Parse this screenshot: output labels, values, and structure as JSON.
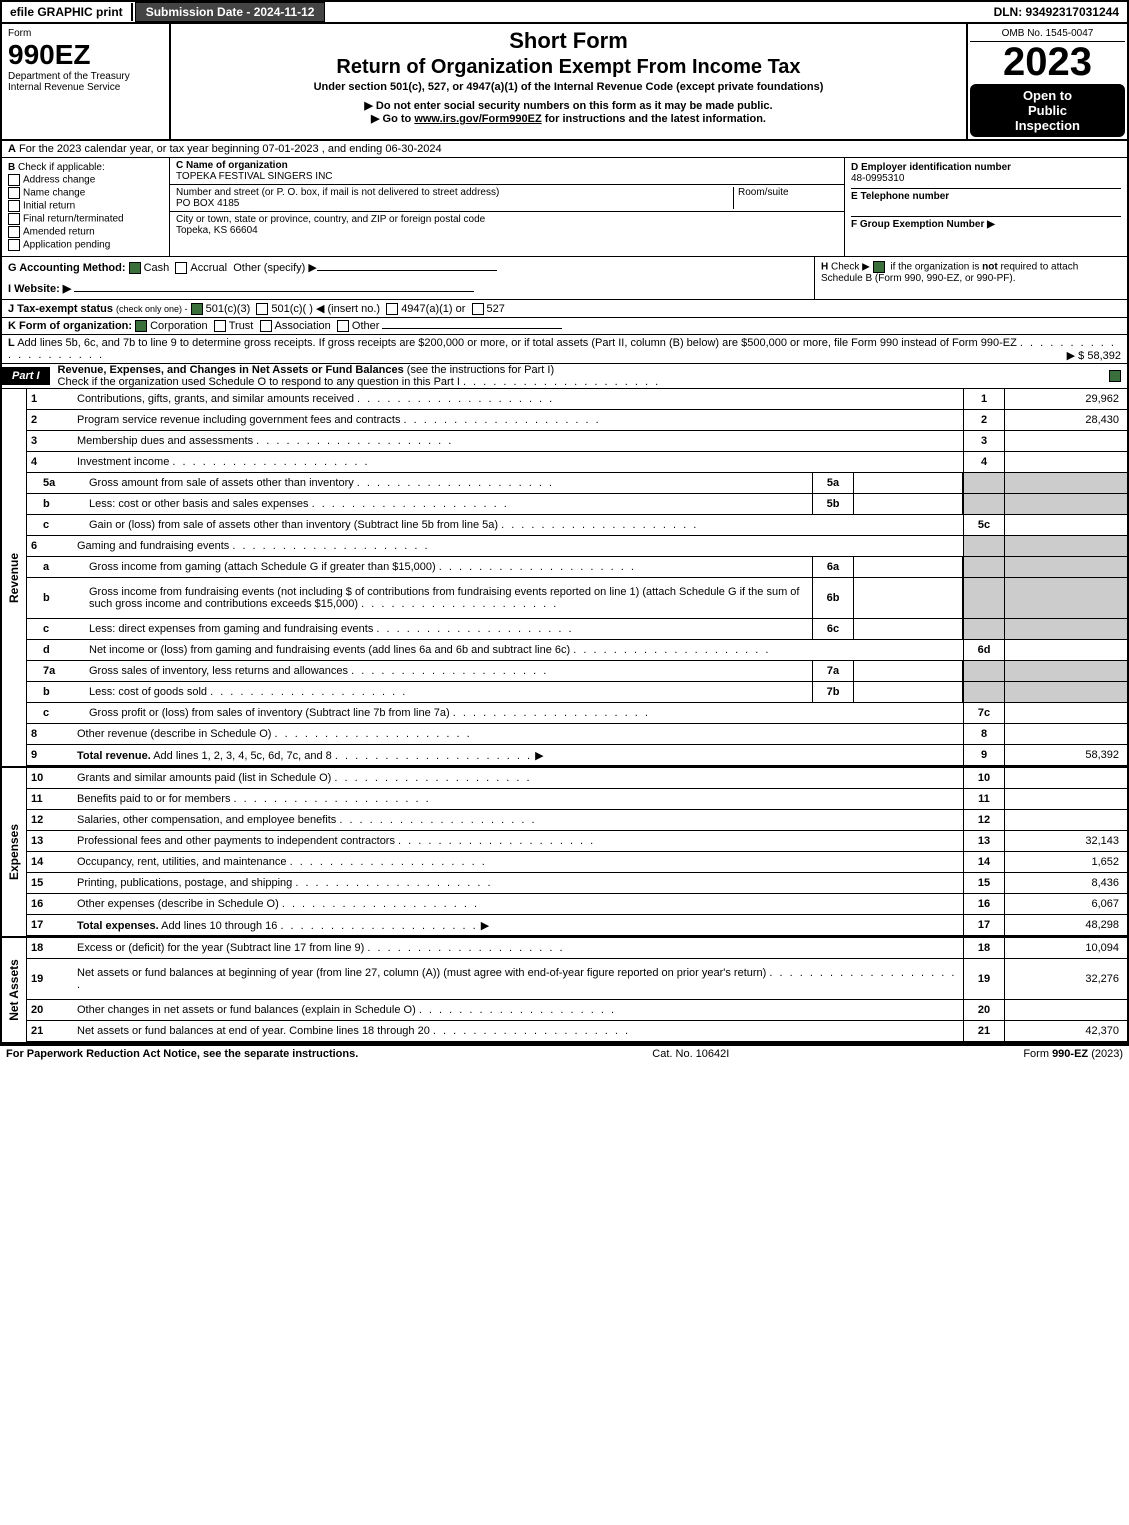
{
  "topbar": {
    "efile": "efile GRAPHIC print",
    "submission": "Submission Date - 2024-11-12",
    "dln": "DLN: 93492317031244"
  },
  "header": {
    "form_word": "Form",
    "form_num": "990EZ",
    "dept1": "Department of the Treasury",
    "dept2": "Internal Revenue Service",
    "title1": "Short Form",
    "title2": "Return of Organization Exempt From Income Tax",
    "subtitle": "Under section 501(c), 527, or 4947(a)(1) of the Internal Revenue Code (except private foundations)",
    "note1": "▶ Do not enter social security numbers on this form as it may be made public.",
    "note2": "▶ Go to www.irs.gov/Form990EZ for instructions and the latest information.",
    "omb": "OMB No. 1545-0047",
    "year": "2023",
    "open1": "Open to",
    "open2": "Public",
    "open3": "Inspection"
  },
  "lineA": {
    "label": "A",
    "text": "For the 2023 calendar year, or tax year beginning 07-01-2023 , and ending 06-30-2024"
  },
  "sectionB": {
    "label": "B",
    "heading": "Check if applicable:",
    "opts": [
      "Address change",
      "Name change",
      "Initial return",
      "Final return/terminated",
      "Amended return",
      "Application pending"
    ]
  },
  "sectionC": {
    "name_label": "C Name of organization",
    "name": "TOPEKA FESTIVAL SINGERS INC",
    "addr_label": "Number and street (or P. O. box, if mail is not delivered to street address)",
    "room_label": "Room/suite",
    "addr": "PO BOX 4185",
    "city_label": "City or town, state or province, country, and ZIP or foreign postal code",
    "city": "Topeka, KS  66604"
  },
  "sectionDEF": {
    "d_label": "D Employer identification number",
    "d_val": "48-0995310",
    "e_label": "E Telephone number",
    "f_label": "F Group Exemption Number  ▶"
  },
  "lineG": {
    "label": "G Accounting Method:",
    "cash": "Cash",
    "accrual": "Accrual",
    "other": "Other (specify) ▶"
  },
  "lineH": {
    "label": "H",
    "text1": "Check ▶",
    "text2": "if the organization is not required to attach Schedule B (Form 990, 990-EZ, or 990-PF)."
  },
  "lineI": {
    "label": "I Website: ▶"
  },
  "lineJ": {
    "label": "J Tax-exempt status",
    "sub": "(check only one) -",
    "opts": "501(c)(3)   501(c)(  ) ◀ (insert no.)   4947(a)(1) or   527"
  },
  "lineK": {
    "label": "K Form of organization:",
    "opts": [
      "Corporation",
      "Trust",
      "Association",
      "Other"
    ]
  },
  "lineL": {
    "label": "L",
    "text": "Add lines 5b, 6c, and 7b to line 9 to determine gross receipts. If gross receipts are $200,000 or more, or if total assets (Part II, column (B) below) are $500,000 or more, file Form 990 instead of Form 990-EZ",
    "val": "▶ $ 58,392"
  },
  "part1": {
    "label": "Part I",
    "title": "Revenue, Expenses, and Changes in Net Assets or Fund Balances",
    "sub": "(see the instructions for Part I)",
    "checknote": "Check if the organization used Schedule O to respond to any question in this Part I"
  },
  "sections": {
    "revenue_label": "Revenue",
    "expenses_label": "Expenses",
    "netassets_label": "Net Assets"
  },
  "revenue_lines": [
    {
      "n": "1",
      "d": "Contributions, gifts, grants, and similar amounts received",
      "rn": "1",
      "rv": "29,962"
    },
    {
      "n": "2",
      "d": "Program service revenue including government fees and contracts",
      "rn": "2",
      "rv": "28,430"
    },
    {
      "n": "3",
      "d": "Membership dues and assessments",
      "rn": "3",
      "rv": ""
    },
    {
      "n": "4",
      "d": "Investment income",
      "rn": "4",
      "rv": ""
    },
    {
      "n": "5a",
      "d": "Gross amount from sale of assets other than inventory",
      "mn": "5a",
      "mv": "",
      "gray": true,
      "sub": true
    },
    {
      "n": "b",
      "d": "Less: cost or other basis and sales expenses",
      "mn": "5b",
      "mv": "",
      "gray": true,
      "sub": true
    },
    {
      "n": "c",
      "d": "Gain or (loss) from sale of assets other than inventory (Subtract line 5b from line 5a)",
      "rn": "5c",
      "rv": "",
      "sub": true
    },
    {
      "n": "6",
      "d": "Gaming and fundraising events",
      "gray": true,
      "norn": true
    },
    {
      "n": "a",
      "d": "Gross income from gaming (attach Schedule G if greater than $15,000)",
      "mn": "6a",
      "mv": "",
      "gray": true,
      "sub": true
    },
    {
      "n": "b",
      "d": "Gross income from fundraising events (not including $                    of contributions from fundraising events reported on line 1) (attach Schedule G if the sum of such gross income and contributions exceeds $15,000)",
      "mn": "6b",
      "mv": "",
      "gray": true,
      "sub": true,
      "tall": true
    },
    {
      "n": "c",
      "d": "Less: direct expenses from gaming and fundraising events",
      "mn": "6c",
      "mv": "",
      "gray": true,
      "sub": true
    },
    {
      "n": "d",
      "d": "Net income or (loss) from gaming and fundraising events (add lines 6a and 6b and subtract line 6c)",
      "rn": "6d",
      "rv": "",
      "sub": true
    },
    {
      "n": "7a",
      "d": "Gross sales of inventory, less returns and allowances",
      "mn": "7a",
      "mv": "",
      "gray": true,
      "sub": true
    },
    {
      "n": "b",
      "d": "Less: cost of goods sold",
      "mn": "7b",
      "mv": "",
      "gray": true,
      "sub": true
    },
    {
      "n": "c",
      "d": "Gross profit or (loss) from sales of inventory (Subtract line 7b from line 7a)",
      "rn": "7c",
      "rv": "",
      "sub": true
    },
    {
      "n": "8",
      "d": "Other revenue (describe in Schedule O)",
      "rn": "8",
      "rv": ""
    },
    {
      "n": "9",
      "d": "Total revenue. Add lines 1, 2, 3, 4, 5c, 6d, 7c, and 8",
      "rn": "9",
      "rv": "58,392",
      "bold": true,
      "arrow": true
    }
  ],
  "expense_lines": [
    {
      "n": "10",
      "d": "Grants and similar amounts paid (list in Schedule O)",
      "rn": "10",
      "rv": ""
    },
    {
      "n": "11",
      "d": "Benefits paid to or for members",
      "rn": "11",
      "rv": ""
    },
    {
      "n": "12",
      "d": "Salaries, other compensation, and employee benefits",
      "rn": "12",
      "rv": ""
    },
    {
      "n": "13",
      "d": "Professional fees and other payments to independent contractors",
      "rn": "13",
      "rv": "32,143"
    },
    {
      "n": "14",
      "d": "Occupancy, rent, utilities, and maintenance",
      "rn": "14",
      "rv": "1,652"
    },
    {
      "n": "15",
      "d": "Printing, publications, postage, and shipping",
      "rn": "15",
      "rv": "8,436"
    },
    {
      "n": "16",
      "d": "Other expenses (describe in Schedule O)",
      "rn": "16",
      "rv": "6,067"
    },
    {
      "n": "17",
      "d": "Total expenses. Add lines 10 through 16",
      "rn": "17",
      "rv": "48,298",
      "bold": true,
      "arrow": true
    }
  ],
  "netasset_lines": [
    {
      "n": "18",
      "d": "Excess or (deficit) for the year (Subtract line 17 from line 9)",
      "rn": "18",
      "rv": "10,094"
    },
    {
      "n": "19",
      "d": "Net assets or fund balances at beginning of year (from line 27, column (A)) (must agree with end-of-year figure reported on prior year's return)",
      "rn": "19",
      "rv": "32,276",
      "tall": true
    },
    {
      "n": "20",
      "d": "Other changes in net assets or fund balances (explain in Schedule O)",
      "rn": "20",
      "rv": ""
    },
    {
      "n": "21",
      "d": "Net assets or fund balances at end of year. Combine lines 18 through 20",
      "rn": "21",
      "rv": "42,370"
    }
  ],
  "footer": {
    "left": "For Paperwork Reduction Act Notice, see the separate instructions.",
    "center": "Cat. No. 10642I",
    "right_pre": "Form ",
    "right_bold": "990-EZ",
    "right_post": " (2023)"
  },
  "colors": {
    "black": "#000000",
    "white": "#ffffff",
    "gray_fill": "#cccccc",
    "dark_btn": "#444444",
    "check_green": "#3a6e3a"
  }
}
